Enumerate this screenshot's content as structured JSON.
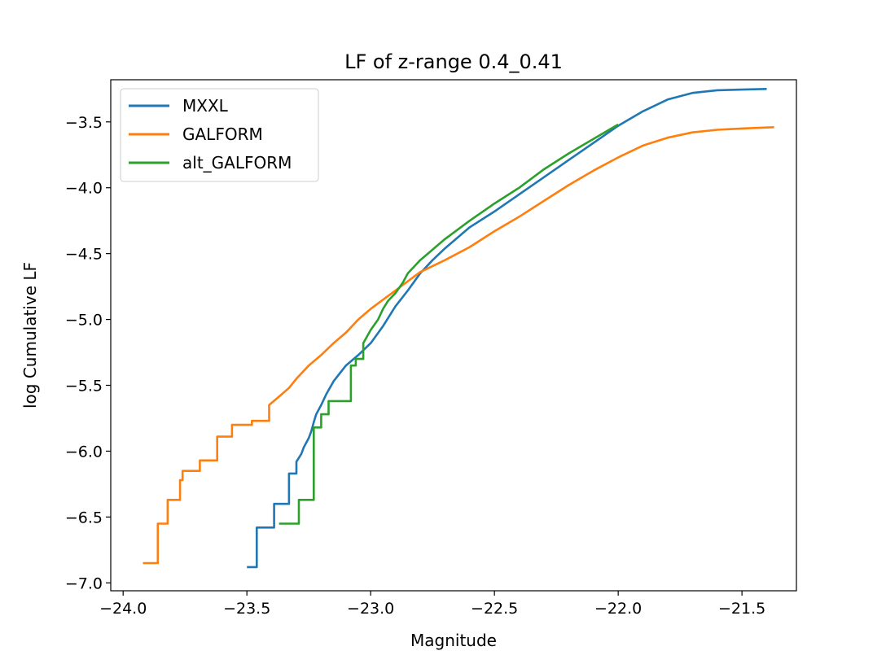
{
  "chart_data": {
    "type": "line",
    "title": "LF of z-range 0.4_0.41",
    "xlabel": "Magnitude",
    "ylabel": "log Cumulative LF",
    "xlim": [
      -24.05,
      -21.28
    ],
    "ylim": [
      -7.06,
      -3.18
    ],
    "xticks": [
      -24.0,
      -23.5,
      -23.0,
      -22.5,
      -22.0,
      -21.5
    ],
    "xtick_labels": [
      "−24.0",
      "−23.5",
      "−23.0",
      "−22.5",
      "−22.0",
      "−21.5"
    ],
    "yticks": [
      -7.0,
      -6.5,
      -6.0,
      -5.5,
      -5.0,
      -4.5,
      -4.0,
      -3.5
    ],
    "ytick_labels": [
      "−7.0",
      "−6.5",
      "−6.0",
      "−5.5",
      "−5.0",
      "−4.5",
      "−4.0",
      "−3.5"
    ],
    "grid": false,
    "legend_position": "upper-left",
    "series": [
      {
        "name": "MXXL",
        "color": "#1f77b4",
        "x": [
          -23.5,
          -23.46,
          -23.46,
          -23.39,
          -23.39,
          -23.33,
          -23.33,
          -23.3,
          -23.3,
          -23.28,
          -23.27,
          -23.25,
          -23.24,
          -23.23,
          -23.22,
          -23.2,
          -23.18,
          -23.15,
          -23.1,
          -23.05,
          -23.0,
          -22.95,
          -22.9,
          -22.85,
          -22.8,
          -22.75,
          -22.7,
          -22.6,
          -22.5,
          -22.4,
          -22.3,
          -22.2,
          -22.1,
          -22.0,
          -21.9,
          -21.8,
          -21.7,
          -21.6,
          -21.5,
          -21.4
        ],
        "y": [
          -6.88,
          -6.88,
          -6.58,
          -6.58,
          -6.4,
          -6.4,
          -6.17,
          -6.17,
          -6.08,
          -6.02,
          -5.97,
          -5.9,
          -5.85,
          -5.78,
          -5.72,
          -5.65,
          -5.57,
          -5.47,
          -5.35,
          -5.27,
          -5.18,
          -5.05,
          -4.9,
          -4.78,
          -4.65,
          -4.55,
          -4.46,
          -4.3,
          -4.18,
          -4.05,
          -3.92,
          -3.79,
          -3.66,
          -3.53,
          -3.42,
          -3.33,
          -3.28,
          -3.26,
          -3.255,
          -3.25
        ]
      },
      {
        "name": "GALFORM",
        "color": "#ff7f0e",
        "x": [
          -23.92,
          -23.86,
          -23.86,
          -23.82,
          -23.82,
          -23.77,
          -23.77,
          -23.76,
          -23.76,
          -23.69,
          -23.69,
          -23.62,
          -23.62,
          -23.56,
          -23.56,
          -23.48,
          -23.48,
          -23.41,
          -23.41,
          -23.36,
          -23.33,
          -23.3,
          -23.25,
          -23.2,
          -23.15,
          -23.1,
          -23.05,
          -23.0,
          -22.9,
          -22.8,
          -22.7,
          -22.6,
          -22.5,
          -22.4,
          -22.3,
          -22.2,
          -22.1,
          -22.0,
          -21.9,
          -21.8,
          -21.7,
          -21.6,
          -21.5,
          -21.37
        ],
        "y": [
          -6.85,
          -6.85,
          -6.55,
          -6.55,
          -6.37,
          -6.37,
          -6.22,
          -6.22,
          -6.15,
          -6.15,
          -6.07,
          -6.07,
          -5.89,
          -5.89,
          -5.8,
          -5.8,
          -5.77,
          -5.77,
          -5.65,
          -5.57,
          -5.52,
          -5.45,
          -5.35,
          -5.27,
          -5.18,
          -5.1,
          -5.0,
          -4.92,
          -4.78,
          -4.64,
          -4.55,
          -4.45,
          -4.33,
          -4.22,
          -4.1,
          -3.98,
          -3.87,
          -3.77,
          -3.68,
          -3.62,
          -3.58,
          -3.56,
          -3.55,
          -3.54
        ]
      },
      {
        "name": "alt_GALFORM",
        "color": "#2ca02c",
        "x": [
          -23.37,
          -23.29,
          -23.29,
          -23.23,
          -23.23,
          -23.2,
          -23.2,
          -23.17,
          -23.17,
          -23.08,
          -23.08,
          -23.06,
          -23.06,
          -23.03,
          -23.03,
          -23.0,
          -22.97,
          -22.95,
          -22.93,
          -22.9,
          -22.87,
          -22.85,
          -22.8,
          -22.75,
          -22.7,
          -22.6,
          -22.5,
          -22.4,
          -22.3,
          -22.2,
          -22.1,
          -22.0
        ],
        "y": [
          -6.55,
          -6.55,
          -6.37,
          -6.37,
          -5.82,
          -5.82,
          -5.72,
          -5.72,
          -5.62,
          -5.62,
          -5.35,
          -5.35,
          -5.3,
          -5.3,
          -5.18,
          -5.08,
          -5.0,
          -4.92,
          -4.86,
          -4.8,
          -4.72,
          -4.65,
          -4.55,
          -4.47,
          -4.39,
          -4.25,
          -4.12,
          -4.0,
          -3.86,
          -3.74,
          -3.63,
          -3.52
        ]
      }
    ]
  }
}
